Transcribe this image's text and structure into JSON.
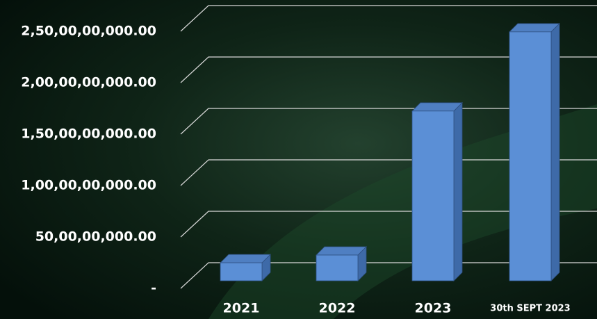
{
  "chart_data": {
    "type": "bar3d",
    "categories": [
      "2021",
      "2022",
      "2023",
      "30th SEPT 2023"
    ],
    "values": [
      175000000,
      250000000,
      1650000000,
      2420000000
    ],
    "color": "#5b8fd6",
    "ylim": [
      0,
      2500000000
    ],
    "yticks": [
      {
        "value": 0,
        "label": "-"
      },
      {
        "value": 500000000,
        "label": "50,00,00,000.00"
      },
      {
        "value": 1000000000,
        "label": "1,00,00,00,000.00"
      },
      {
        "value": 1500000000,
        "label": "1,50,00,00,000.00"
      },
      {
        "value": 2000000000,
        "label": "2,00,00,00,000.00"
      },
      {
        "value": 2500000000,
        "label": "2,50,00,00,000.00"
      }
    ],
    "grid": true
  }
}
